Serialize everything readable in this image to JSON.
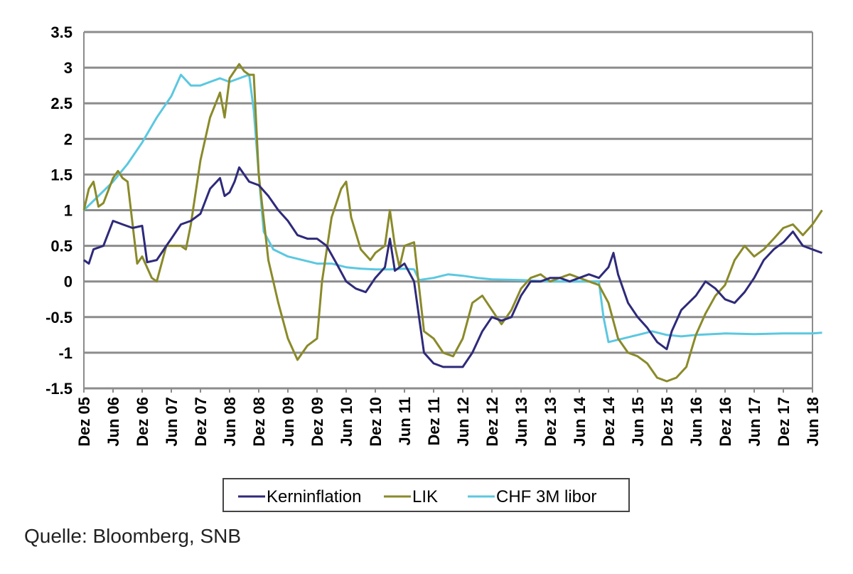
{
  "source": "Quelle: Bloomberg, SNB",
  "chart_data": {
    "type": "line",
    "title": "",
    "xlabel": "",
    "ylabel": "",
    "ylim": [
      -1.5,
      3.5
    ],
    "yticks": [
      "3.5",
      "3",
      "2.5",
      "2",
      "1.5",
      "1",
      "0.5",
      "0",
      "-0.5",
      "-1",
      "-1.5"
    ],
    "grid": true,
    "legend_position": "bottom",
    "x_labels": [
      "Dez 05",
      "Jun 06",
      "Dez 06",
      "Jun 07",
      "Dez 07",
      "Jun 08",
      "Dez 08",
      "Jun 09",
      "Dez 09",
      "Jun 10",
      "Dez 10",
      "Jun 11",
      "Dez 11",
      "Jun 12",
      "Dez 12",
      "Jun 13",
      "Dez 13",
      "Jun 14",
      "Dez 14",
      "Jun 15",
      "Dez 15",
      "Jun 16",
      "Dez 16",
      "Jun 17",
      "Dez 17",
      "Jun 18"
    ],
    "series": [
      {
        "name": "Kerninflation",
        "color": "#2e2a7a",
        "points": [
          [
            0,
            0.3
          ],
          [
            0.17,
            0.25
          ],
          [
            0.33,
            0.45
          ],
          [
            0.67,
            0.5
          ],
          [
            1,
            0.85
          ],
          [
            1.33,
            0.8
          ],
          [
            1.67,
            0.75
          ],
          [
            2,
            0.78
          ],
          [
            2.17,
            0.27
          ],
          [
            2.5,
            0.3
          ],
          [
            2.83,
            0.5
          ],
          [
            3,
            0.6
          ],
          [
            3.33,
            0.8
          ],
          [
            3.67,
            0.85
          ],
          [
            4,
            0.95
          ],
          [
            4.33,
            1.3
          ],
          [
            4.67,
            1.45
          ],
          [
            4.83,
            1.2
          ],
          [
            5,
            1.25
          ],
          [
            5.17,
            1.4
          ],
          [
            5.33,
            1.6
          ],
          [
            5.67,
            1.4
          ],
          [
            6,
            1.35
          ],
          [
            6.33,
            1.2
          ],
          [
            6.67,
            1.0
          ],
          [
            7,
            0.85
          ],
          [
            7.33,
            0.65
          ],
          [
            7.67,
            0.6
          ],
          [
            8,
            0.6
          ],
          [
            8.33,
            0.5
          ],
          [
            8.67,
            0.25
          ],
          [
            9,
            0.0
          ],
          [
            9.33,
            -0.1
          ],
          [
            9.67,
            -0.15
          ],
          [
            10,
            0.05
          ],
          [
            10.33,
            0.2
          ],
          [
            10.5,
            0.6
          ],
          [
            10.67,
            0.15
          ],
          [
            11,
            0.25
          ],
          [
            11.33,
            0.0
          ],
          [
            11.67,
            -1.0
          ],
          [
            12,
            -1.15
          ],
          [
            12.33,
            -1.2
          ],
          [
            13,
            -1.2
          ],
          [
            13.33,
            -1.0
          ],
          [
            13.67,
            -0.7
          ],
          [
            14,
            -0.5
          ],
          [
            14.33,
            -0.55
          ],
          [
            14.67,
            -0.5
          ],
          [
            15,
            -0.2
          ],
          [
            15.33,
            0.0
          ],
          [
            15.67,
            0.0
          ],
          [
            16,
            0.05
          ],
          [
            16.33,
            0.05
          ],
          [
            16.67,
            0.0
          ],
          [
            17,
            0.05
          ],
          [
            17.33,
            0.1
          ],
          [
            17.67,
            0.05
          ],
          [
            18,
            0.2
          ],
          [
            18.17,
            0.4
          ],
          [
            18.33,
            0.1
          ],
          [
            18.67,
            -0.3
          ],
          [
            19,
            -0.5
          ],
          [
            19.33,
            -0.65
          ],
          [
            19.67,
            -0.85
          ],
          [
            20,
            -0.95
          ],
          [
            20.17,
            -0.7
          ],
          [
            20.5,
            -0.4
          ],
          [
            21,
            -0.2
          ],
          [
            21.33,
            0.0
          ],
          [
            21.67,
            -0.1
          ],
          [
            22,
            -0.25
          ],
          [
            22.33,
            -0.3
          ],
          [
            22.67,
            -0.15
          ],
          [
            23,
            0.05
          ],
          [
            23.33,
            0.3
          ],
          [
            23.67,
            0.45
          ],
          [
            24,
            0.55
          ],
          [
            24.33,
            0.7
          ],
          [
            24.67,
            0.5
          ],
          [
            25,
            0.45
          ],
          [
            25.33,
            0.4
          ]
        ]
      },
      {
        "name": "LIK",
        "color": "#8a8a2a",
        "points": [
          [
            0,
            1.0
          ],
          [
            0.17,
            1.3
          ],
          [
            0.33,
            1.4
          ],
          [
            0.5,
            1.05
          ],
          [
            0.67,
            1.1
          ],
          [
            1,
            1.45
          ],
          [
            1.17,
            1.55
          ],
          [
            1.33,
            1.45
          ],
          [
            1.5,
            1.4
          ],
          [
            1.83,
            0.25
          ],
          [
            2,
            0.35
          ],
          [
            2.33,
            0.05
          ],
          [
            2.5,
            0.0
          ],
          [
            2.83,
            0.5
          ],
          [
            3,
            0.5
          ],
          [
            3.33,
            0.5
          ],
          [
            3.5,
            0.45
          ],
          [
            3.67,
            0.8
          ],
          [
            4,
            1.7
          ],
          [
            4.33,
            2.3
          ],
          [
            4.67,
            2.65
          ],
          [
            4.83,
            2.3
          ],
          [
            5,
            2.85
          ],
          [
            5.33,
            3.05
          ],
          [
            5.5,
            2.95
          ],
          [
            5.67,
            2.9
          ],
          [
            5.83,
            2.9
          ],
          [
            6,
            1.5
          ],
          [
            6.33,
            0.3
          ],
          [
            6.67,
            -0.3
          ],
          [
            7,
            -0.8
          ],
          [
            7.33,
            -1.1
          ],
          [
            7.67,
            -0.9
          ],
          [
            8,
            -0.8
          ],
          [
            8.17,
            0.0
          ],
          [
            8.5,
            0.9
          ],
          [
            8.83,
            1.3
          ],
          [
            9,
            1.4
          ],
          [
            9.17,
            0.9
          ],
          [
            9.5,
            0.45
          ],
          [
            9.83,
            0.3
          ],
          [
            10,
            0.4
          ],
          [
            10.33,
            0.5
          ],
          [
            10.5,
            1.0
          ],
          [
            10.67,
            0.5
          ],
          [
            10.83,
            0.2
          ],
          [
            11,
            0.5
          ],
          [
            11.33,
            0.55
          ],
          [
            11.67,
            -0.7
          ],
          [
            12,
            -0.8
          ],
          [
            12.33,
            -1.0
          ],
          [
            12.67,
            -1.05
          ],
          [
            13,
            -0.8
          ],
          [
            13.33,
            -0.3
          ],
          [
            13.67,
            -0.2
          ],
          [
            14,
            -0.4
          ],
          [
            14.33,
            -0.6
          ],
          [
            14.67,
            -0.4
          ],
          [
            15,
            -0.1
          ],
          [
            15.33,
            0.05
          ],
          [
            15.67,
            0.1
          ],
          [
            16,
            0.0
          ],
          [
            16.33,
            0.05
          ],
          [
            16.67,
            0.1
          ],
          [
            17,
            0.05
          ],
          [
            17.33,
            0.0
          ],
          [
            17.67,
            -0.05
          ],
          [
            18,
            -0.3
          ],
          [
            18.33,
            -0.8
          ],
          [
            18.67,
            -1.0
          ],
          [
            19,
            -1.05
          ],
          [
            19.33,
            -1.15
          ],
          [
            19.67,
            -1.35
          ],
          [
            20,
            -1.4
          ],
          [
            20.33,
            -1.35
          ],
          [
            20.67,
            -1.2
          ],
          [
            21,
            -0.75
          ],
          [
            21.33,
            -0.45
          ],
          [
            21.67,
            -0.2
          ],
          [
            22,
            -0.05
          ],
          [
            22.33,
            0.3
          ],
          [
            22.67,
            0.5
          ],
          [
            23,
            0.35
          ],
          [
            23.33,
            0.45
          ],
          [
            23.67,
            0.6
          ],
          [
            24,
            0.75
          ],
          [
            24.33,
            0.8
          ],
          [
            24.67,
            0.65
          ],
          [
            25,
            0.8
          ],
          [
            25.33,
            1.0
          ]
        ]
      },
      {
        "name": "CHF 3M libor",
        "color": "#5bc8e0",
        "points": [
          [
            0,
            1.0
          ],
          [
            0.5,
            1.2
          ],
          [
            1,
            1.4
          ],
          [
            1.5,
            1.65
          ],
          [
            2,
            1.95
          ],
          [
            2.5,
            2.3
          ],
          [
            3,
            2.6
          ],
          [
            3.33,
            2.9
          ],
          [
            3.67,
            2.75
          ],
          [
            4,
            2.75
          ],
          [
            4.33,
            2.8
          ],
          [
            4.67,
            2.85
          ],
          [
            5,
            2.8
          ],
          [
            5.33,
            2.85
          ],
          [
            5.67,
            2.9
          ],
          [
            5.83,
            2.4
          ],
          [
            6,
            1.5
          ],
          [
            6.17,
            0.7
          ],
          [
            6.5,
            0.45
          ],
          [
            7,
            0.35
          ],
          [
            7.5,
            0.3
          ],
          [
            8,
            0.25
          ],
          [
            8.5,
            0.25
          ],
          [
            9,
            0.2
          ],
          [
            9.5,
            0.18
          ],
          [
            10,
            0.17
          ],
          [
            10.5,
            0.17
          ],
          [
            11,
            0.18
          ],
          [
            11.33,
            0.17
          ],
          [
            11.5,
            0.02
          ],
          [
            12,
            0.05
          ],
          [
            12.5,
            0.1
          ],
          [
            13,
            0.08
          ],
          [
            13.5,
            0.05
          ],
          [
            14,
            0.03
          ],
          [
            15,
            0.02
          ],
          [
            16,
            0.0
          ],
          [
            17,
            0.0
          ],
          [
            17.67,
            0.0
          ],
          [
            17.83,
            -0.5
          ],
          [
            18,
            -0.85
          ],
          [
            18.5,
            -0.8
          ],
          [
            19,
            -0.75
          ],
          [
            19.5,
            -0.7
          ],
          [
            20,
            -0.75
          ],
          [
            20.5,
            -0.77
          ],
          [
            21,
            -0.75
          ],
          [
            22,
            -0.73
          ],
          [
            23,
            -0.74
          ],
          [
            24,
            -0.73
          ],
          [
            25,
            -0.73
          ],
          [
            25.33,
            -0.72
          ]
        ]
      }
    ]
  }
}
